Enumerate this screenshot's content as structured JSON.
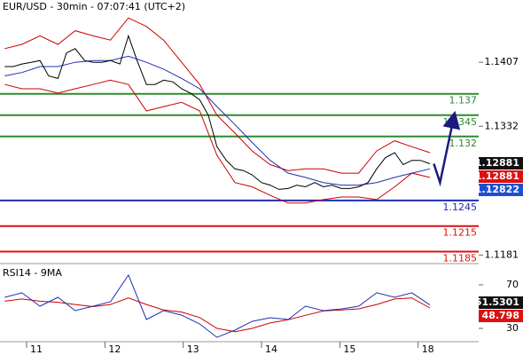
{
  "chart_data": [
    {
      "type": "line",
      "title": "EUR/USD - 30min - 07:07:41 (UTC+2)",
      "xlim": [
        -0.34,
        5.66
      ],
      "ylim": [
        1.1171,
        1.148
      ],
      "yticks": [
        1.1407,
        1.1332,
        1.1181
      ],
      "series": [
        {
          "color": "#cc0000",
          "x": [
            -0.28,
            -0.06,
            0.17,
            0.4,
            0.62,
            0.85,
            1.07,
            1.3,
            1.53,
            1.75,
            1.98,
            2.21,
            2.43,
            2.66,
            2.88,
            3.11,
            3.34,
            3.56,
            3.79,
            4.02,
            4.24,
            4.47,
            4.7,
            4.92,
            5.15
          ],
          "values": [
            1.1423,
            1.1428,
            1.1438,
            1.1428,
            1.1444,
            1.1438,
            1.1433,
            1.1459,
            1.1449,
            1.1433,
            1.1407,
            1.1381,
            1.1345,
            1.1324,
            1.1303,
            1.1287,
            1.128,
            1.1282,
            1.1282,
            1.1277,
            1.1277,
            1.1303,
            1.1315,
            1.1308,
            1.1301
          ]
        },
        {
          "color": "#cc0000",
          "x": [
            -0.28,
            -0.06,
            0.17,
            0.4,
            0.62,
            0.85,
            1.07,
            1.3,
            1.53,
            1.75,
            1.98,
            2.21,
            2.43,
            2.66,
            2.88,
            3.11,
            3.34,
            3.56,
            3.79,
            4.02,
            4.24,
            4.47,
            4.7,
            4.92,
            5.15
          ],
          "values": [
            1.1381,
            1.1376,
            1.1376,
            1.1371,
            1.1376,
            1.1381,
            1.1386,
            1.1381,
            1.135,
            1.1355,
            1.136,
            1.135,
            1.1298,
            1.1266,
            1.1261,
            1.1251,
            1.1242,
            1.1242,
            1.1246,
            1.1249,
            1.1249,
            1.1246,
            1.1261,
            1.1277,
            1.1272
          ]
        },
        {
          "color": "#1f2fb0",
          "x": [
            -0.28,
            -0.06,
            0.17,
            0.4,
            0.62,
            0.85,
            1.07,
            1.3,
            1.53,
            1.75,
            1.98,
            2.21,
            2.43,
            2.66,
            2.88,
            3.11,
            3.34,
            3.56,
            3.79,
            4.02,
            4.24,
            4.47,
            4.7,
            4.92,
            5.15
          ],
          "values": [
            1.1391,
            1.1395,
            1.1402,
            1.1402,
            1.1407,
            1.1409,
            1.1409,
            1.1414,
            1.1407,
            1.1399,
            1.1388,
            1.1376,
            1.1355,
            1.1334,
            1.1313,
            1.1292,
            1.1277,
            1.1272,
            1.1266,
            1.1263,
            1.1263,
            1.1266,
            1.1272,
            1.1277,
            1.1282
          ]
        },
        {
          "color": "#000000",
          "x": [
            -0.28,
            -0.17,
            -0.06,
            0.06,
            0.17,
            0.28,
            0.4,
            0.51,
            0.62,
            0.74,
            0.85,
            0.96,
            1.07,
            1.19,
            1.3,
            1.41,
            1.53,
            1.64,
            1.75,
            1.87,
            1.98,
            2.09,
            2.21,
            2.32,
            2.43,
            2.55,
            2.66,
            2.77,
            2.88,
            3.0,
            3.11,
            3.22,
            3.34,
            3.45,
            3.56,
            3.68,
            3.79,
            3.9,
            4.02,
            4.13,
            4.24,
            4.36,
            4.47,
            4.58,
            4.7,
            4.81,
            4.92,
            5.03,
            5.15
          ],
          "values": [
            1.1402,
            1.1402,
            1.1405,
            1.1407,
            1.1409,
            1.1391,
            1.1388,
            1.1418,
            1.1423,
            1.1409,
            1.1407,
            1.1407,
            1.1409,
            1.1405,
            1.1438,
            1.1409,
            1.1381,
            1.1381,
            1.1386,
            1.1384,
            1.1376,
            1.1371,
            1.1363,
            1.1345,
            1.1308,
            1.1292,
            1.1282,
            1.128,
            1.1275,
            1.1266,
            1.1263,
            1.1258,
            1.1259,
            1.1263,
            1.1261,
            1.1266,
            1.1261,
            1.1263,
            1.1259,
            1.1259,
            1.1261,
            1.1266,
            1.1282,
            1.1295,
            1.1301,
            1.1287,
            1.1292,
            1.1292,
            1.1288
          ]
        },
        {
          "color": "#1a1a80",
          "x": [
            5.2,
            5.28,
            5.45
          ],
          "values": [
            1.1288,
            1.1266,
            1.134
          ],
          "arrow": true
        }
      ],
      "levels": [
        {
          "value": 1.137,
          "color": "#2e8b2e"
        },
        {
          "value": 1.1345,
          "color": "#2e8b2e"
        },
        {
          "value": 1.132,
          "color": "#2e8b2e"
        },
        {
          "value": 1.1245,
          "color": "#1f2fb0"
        },
        {
          "value": 1.1215,
          "color": "#dd1111"
        },
        {
          "value": 1.1185,
          "color": "#dd1111"
        }
      ],
      "tags": [
        {
          "value": 1.12881,
          "color": "#111111"
        },
        {
          "value": 1.12881,
          "color": "#dd1111"
        },
        {
          "value": 1.12822,
          "color": "#1f4fd0"
        }
      ]
    },
    {
      "type": "line",
      "title": "RSI14 - 9MA",
      "xlim": [
        -0.34,
        5.66
      ],
      "ylim": [
        17.8,
        87.1
      ],
      "yticks": [
        70,
        30
      ],
      "xticks": [
        {
          "value": 0,
          "label": "11"
        },
        {
          "value": 1,
          "label": "12"
        },
        {
          "value": 2,
          "label": "13"
        },
        {
          "value": 3,
          "label": "14"
        },
        {
          "value": 4,
          "label": "15"
        },
        {
          "value": 5,
          "label": "18"
        }
      ],
      "series": [
        {
          "color": "#cc0000",
          "x": [
            -0.28,
            -0.06,
            0.17,
            0.4,
            0.62,
            0.85,
            1.07,
            1.3,
            1.53,
            1.75,
            1.98,
            2.21,
            2.43,
            2.66,
            2.88,
            3.11,
            3.34,
            3.56,
            3.79,
            4.02,
            4.24,
            4.47,
            4.7,
            4.92,
            5.15
          ],
          "values": [
            55,
            57,
            55,
            54,
            52,
            50,
            52,
            58,
            52,
            47,
            45,
            40,
            30,
            27,
            30,
            35,
            38,
            42,
            46,
            47,
            48,
            52,
            57,
            58,
            48.798
          ]
        },
        {
          "color": "#1f2fb0",
          "x": [
            -0.28,
            -0.06,
            0.17,
            0.4,
            0.62,
            0.85,
            1.07,
            1.3,
            1.53,
            1.75,
            1.98,
            2.21,
            2.43,
            2.66,
            2.88,
            3.11,
            3.34,
            3.56,
            3.79,
            4.02,
            4.24,
            4.47,
            4.7,
            4.92,
            5.15
          ],
          "values": [
            58.6,
            62.7,
            50.4,
            58.6,
            46.3,
            50.4,
            54.5,
            79.0,
            38.2,
            46.3,
            42.2,
            34.1,
            21.8,
            28.4,
            36.5,
            39.8,
            38.2,
            50.4,
            46.3,
            47.9,
            50.4,
            62.7,
            58.6,
            62.7,
            51.5301
          ]
        }
      ],
      "tags": [
        {
          "value": 51.5301,
          "color": "#111111"
        },
        {
          "value": 48.798,
          "color": "#dd1111"
        }
      ]
    }
  ]
}
